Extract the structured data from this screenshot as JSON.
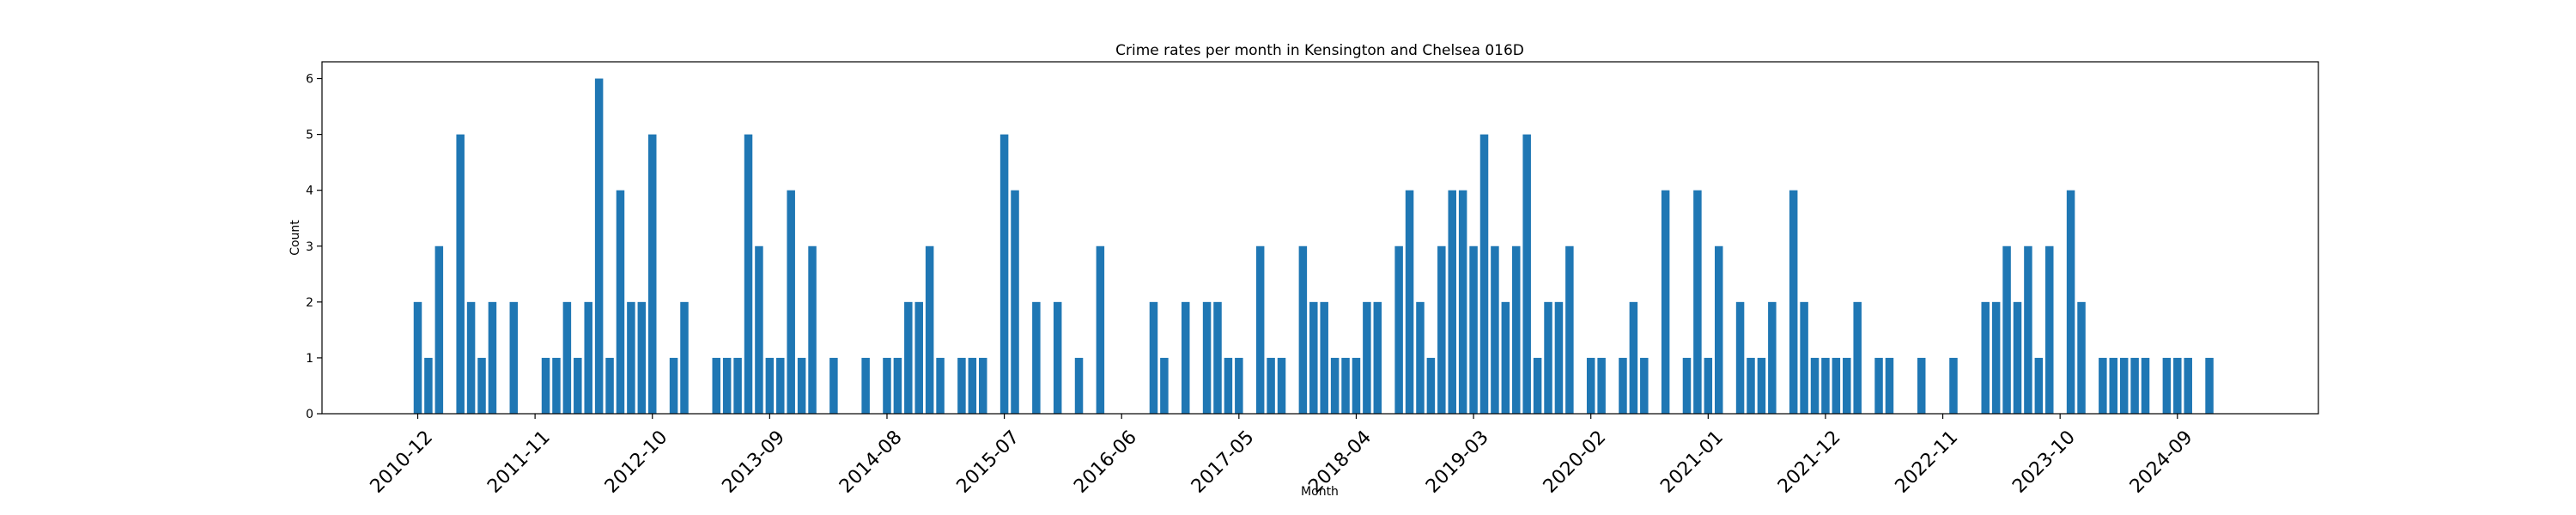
{
  "chart_data": {
    "type": "bar",
    "title": "Crime rates per month in Kensington and Chelsea 016D",
    "xlabel": "Month",
    "ylabel": "Count",
    "ylim": [
      0,
      6.3
    ],
    "yticks": [
      "0",
      "1",
      "2",
      "3",
      "4",
      "5",
      "6"
    ],
    "color": "#1f77b4",
    "xtick_labels": [
      "2010-12",
      "2011-11",
      "2012-10",
      "2013-09",
      "2014-08",
      "2015-07",
      "2016-06",
      "2017-05",
      "2018-04",
      "2019-03",
      "2020-02",
      "2021-01",
      "2021-12",
      "2022-11",
      "2023-10",
      "2024-09"
    ],
    "categories": [
      "2010-12",
      "2011-01",
      "2011-02",
      "2011-04",
      "2011-05",
      "2011-06",
      "2011-07",
      "2011-09",
      "2011-12",
      "2012-01",
      "2012-02",
      "2012-03",
      "2012-04",
      "2012-05",
      "2012-06",
      "2012-07",
      "2012-08",
      "2012-09",
      "2012-10",
      "2012-12",
      "2013-01",
      "2013-04",
      "2013-05",
      "2013-06",
      "2013-07",
      "2013-08",
      "2013-09",
      "2013-10",
      "2013-11",
      "2013-12",
      "2014-01",
      "2014-03",
      "2014-06",
      "2014-08",
      "2014-09",
      "2014-10",
      "2014-11",
      "2014-12",
      "2015-01",
      "2015-03",
      "2015-04",
      "2015-05",
      "2015-07",
      "2015-08",
      "2015-10",
      "2015-12",
      "2016-02",
      "2016-04",
      "2016-09",
      "2016-10",
      "2016-12",
      "2017-02",
      "2017-03",
      "2017-04",
      "2017-05",
      "2017-07",
      "2017-08",
      "2017-09",
      "2017-11",
      "2017-12",
      "2018-01",
      "2018-02",
      "2018-03",
      "2018-04",
      "2018-05",
      "2018-06",
      "2018-08",
      "2018-09",
      "2018-10",
      "2018-11",
      "2018-12",
      "2019-01",
      "2019-02",
      "2019-03",
      "2019-04",
      "2019-05",
      "2019-06",
      "2019-07",
      "2019-08",
      "2019-09",
      "2019-10",
      "2019-11",
      "2019-12",
      "2020-02",
      "2020-03",
      "2020-05",
      "2020-06",
      "2020-07",
      "2020-09",
      "2020-11",
      "2020-12",
      "2021-01",
      "2021-02",
      "2021-04",
      "2021-05",
      "2021-06",
      "2021-07",
      "2021-09",
      "2021-10",
      "2021-11",
      "2021-12",
      "2022-01",
      "2022-02",
      "2022-03",
      "2022-05",
      "2022-06",
      "2022-09",
      "2022-12",
      "2023-03",
      "2023-04",
      "2023-05",
      "2023-06",
      "2023-07",
      "2023-08",
      "2023-09",
      "2023-11",
      "2023-12",
      "2024-02",
      "2024-03",
      "2024-04",
      "2024-05",
      "2024-06",
      "2024-08",
      "2024-09",
      "2024-10",
      "2024-12"
    ],
    "values": [
      2,
      1,
      3,
      5,
      2,
      1,
      2,
      2,
      1,
      1,
      2,
      1,
      2,
      6,
      1,
      4,
      2,
      2,
      5,
      1,
      2,
      1,
      1,
      1,
      5,
      3,
      1,
      1,
      4,
      1,
      3,
      1,
      1,
      1,
      1,
      2,
      2,
      3,
      1,
      1,
      1,
      1,
      5,
      4,
      2,
      2,
      1,
      3,
      2,
      1,
      2,
      2,
      2,
      1,
      1,
      3,
      1,
      1,
      3,
      2,
      2,
      1,
      1,
      1,
      2,
      2,
      3,
      4,
      2,
      1,
      3,
      4,
      4,
      3,
      5,
      3,
      2,
      3,
      5,
      1,
      2,
      2,
      3,
      1,
      1,
      1,
      2,
      1,
      4,
      1,
      4,
      1,
      3,
      2,
      1,
      1,
      2,
      4,
      2,
      1,
      1,
      1,
      1,
      2,
      1,
      1,
      1,
      1,
      2,
      2,
      3,
      2,
      3,
      1,
      3,
      4,
      2,
      1,
      1,
      1,
      1,
      1,
      1,
      1,
      1,
      1
    ]
  }
}
